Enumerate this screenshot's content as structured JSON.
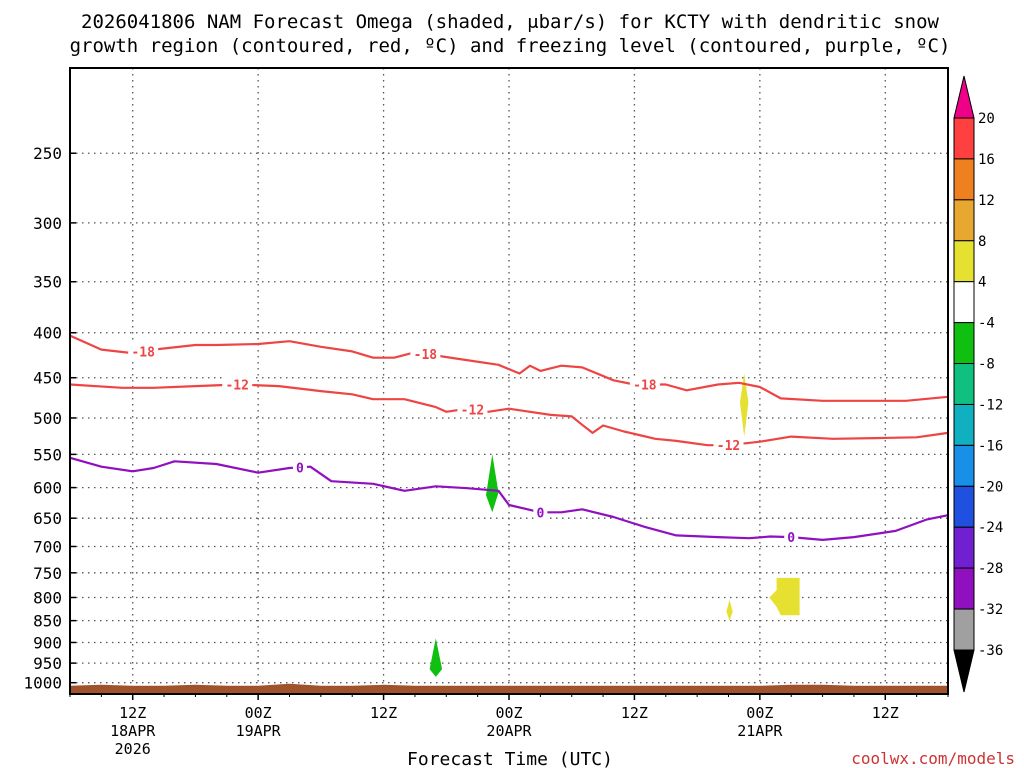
{
  "chart_data": {
    "type": "contour",
    "title_line1": "2026041806 NAM Forecast Omega (shaded, μbar/s) for KCTY with dendritic snow",
    "title_line2": "growth region (contoured, red, ºC) and freezing level (contoured, purple, ºC)",
    "xlabel": "Forecast Time (UTC)",
    "credit": "coolwx.com/models",
    "x_range_hours": [
      0,
      84
    ],
    "y_axis": {
      "scale": "log-pressure",
      "range_mb": [
        200,
        1030
      ],
      "ticks": [
        "250",
        "300",
        "350",
        "400",
        "450",
        "500",
        "550",
        "600",
        "650",
        "700",
        "750",
        "800",
        "850",
        "900",
        "950",
        "1000"
      ]
    },
    "x_ticks": [
      {
        "hour": 6,
        "label": "12Z",
        "sub1": "18APR",
        "sub2": "2026"
      },
      {
        "hour": 18,
        "label": "00Z",
        "sub1": "19APR",
        "sub2": ""
      },
      {
        "hour": 30,
        "label": "12Z",
        "sub1": "",
        "sub2": ""
      },
      {
        "hour": 42,
        "label": "00Z",
        "sub1": "20APR",
        "sub2": ""
      },
      {
        "hour": 54,
        "label": "12Z",
        "sub1": "",
        "sub2": ""
      },
      {
        "hour": 66,
        "label": "00Z",
        "sub1": "21APR",
        "sub2": ""
      },
      {
        "hour": 78,
        "label": "12Z",
        "sub1": "",
        "sub2": ""
      }
    ],
    "colorbar": {
      "labels": [
        "20",
        "16",
        "12",
        "8",
        "4",
        "-4",
        "-8",
        "-12",
        "-16",
        "-20",
        "-24",
        "-28",
        "-32",
        "-36"
      ],
      "colors": [
        "#ff4040",
        "#ee8020",
        "#e8a830",
        "#e6e030",
        "#ffffff",
        "#10c010",
        "#10c080",
        "#10b0c0",
        "#1890e8",
        "#2050e0",
        "#7020d0",
        "#9010c0",
        "#a0a0a0"
      ],
      "top_arrow": "#ee0088",
      "bottom_arrow": "#000000"
    },
    "contours": [
      {
        "name": "minus18",
        "label": "-18",
        "color": "#ee4444",
        "points": [
          [
            0,
            403
          ],
          [
            3,
            418
          ],
          [
            6,
            422
          ],
          [
            8,
            418
          ],
          [
            12,
            413
          ],
          [
            14,
            413
          ],
          [
            18,
            412
          ],
          [
            21,
            409
          ],
          [
            24,
            415
          ],
          [
            27,
            420
          ],
          [
            29,
            427
          ],
          [
            31,
            427
          ],
          [
            33,
            421
          ],
          [
            37,
            428
          ],
          [
            41,
            435
          ],
          [
            43,
            445
          ],
          [
            44,
            436
          ],
          [
            45,
            442
          ],
          [
            47,
            436
          ],
          [
            49,
            438
          ],
          [
            52,
            453
          ],
          [
            54,
            458
          ],
          [
            57,
            458
          ],
          [
            59,
            465
          ],
          [
            62,
            458
          ],
          [
            64,
            456
          ],
          [
            66,
            461
          ],
          [
            68,
            475
          ],
          [
            72,
            478
          ],
          [
            76,
            478
          ],
          [
            80,
            478
          ],
          [
            84,
            473
          ]
        ],
        "label_hours": [
          7,
          34,
          55
        ]
      },
      {
        "name": "minus12",
        "label": "-12",
        "color": "#ee4444",
        "points": [
          [
            0,
            458
          ],
          [
            5,
            462
          ],
          [
            8,
            462
          ],
          [
            12,
            460
          ],
          [
            16,
            458
          ],
          [
            20,
            460
          ],
          [
            24,
            466
          ],
          [
            27,
            470
          ],
          [
            29,
            476
          ],
          [
            32,
            476
          ],
          [
            35,
            486
          ],
          [
            36,
            492
          ],
          [
            38,
            488
          ],
          [
            40,
            492
          ],
          [
            42,
            488
          ],
          [
            44,
            492
          ],
          [
            46,
            496
          ],
          [
            48,
            498
          ],
          [
            49,
            509
          ],
          [
            50,
            520
          ],
          [
            51,
            510
          ],
          [
            53,
            518
          ],
          [
            56,
            528
          ],
          [
            58,
            531
          ],
          [
            61,
            537
          ],
          [
            63,
            537
          ],
          [
            66,
            532
          ],
          [
            69,
            525
          ],
          [
            73,
            528
          ],
          [
            77,
            527
          ],
          [
            81,
            526
          ],
          [
            84,
            520
          ]
        ],
        "label_hours": [
          16,
          38.5,
          63
        ]
      },
      {
        "name": "zero",
        "label": "0",
        "color": "#9010c0",
        "points": [
          [
            0,
            555
          ],
          [
            3,
            568
          ],
          [
            6,
            575
          ],
          [
            8,
            570
          ],
          [
            10,
            560
          ],
          [
            14,
            564
          ],
          [
            18,
            577
          ],
          [
            21,
            570
          ],
          [
            23,
            568
          ],
          [
            25,
            590
          ],
          [
            29,
            594
          ],
          [
            32,
            605
          ],
          [
            35,
            598
          ],
          [
            38,
            601
          ],
          [
            41,
            605
          ],
          [
            42,
            628
          ],
          [
            45,
            640
          ],
          [
            47,
            640
          ],
          [
            49,
            635
          ],
          [
            52,
            648
          ],
          [
            55,
            665
          ],
          [
            58,
            680
          ],
          [
            62,
            683
          ],
          [
            65,
            685
          ],
          [
            67,
            682
          ],
          [
            69,
            683
          ],
          [
            72,
            688
          ],
          [
            75,
            683
          ],
          [
            79,
            672
          ],
          [
            82,
            652
          ],
          [
            84,
            645
          ]
        ],
        "label_hours": [
          22,
          45,
          69
        ]
      }
    ],
    "shaded_areas": [
      {
        "name": "green-blob-mid",
        "value_range": "-4 to -8",
        "color": "#10c010",
        "points": [
          [
            40.4,
            550
          ],
          [
            41.0,
            608
          ],
          [
            40.4,
            640
          ],
          [
            39.8,
            612
          ]
        ]
      },
      {
        "name": "green-blob-low",
        "value_range": "-4 to -8",
        "color": "#10c010",
        "points": [
          [
            35.0,
            890
          ],
          [
            35.6,
            965
          ],
          [
            35.0,
            985
          ],
          [
            34.4,
            965
          ]
        ]
      },
      {
        "name": "yellow-blob-upper",
        "value_range": "4 to 8",
        "color": "#e6e030",
        "points": [
          [
            64.5,
            445
          ],
          [
            64.9,
            480
          ],
          [
            64.5,
            525
          ],
          [
            64.1,
            480
          ]
        ]
      },
      {
        "name": "yellow-blob-small",
        "value_range": "4 to 8",
        "color": "#e6e030",
        "points": [
          [
            63.1,
            805
          ],
          [
            63.4,
            830
          ],
          [
            63.1,
            850
          ],
          [
            62.8,
            830
          ]
        ]
      },
      {
        "name": "yellow-blob-right",
        "value_range": "4 to 8",
        "color": "#e6e030",
        "points": [
          [
            67.6,
            760
          ],
          [
            69.8,
            760
          ],
          [
            69.8,
            838
          ],
          [
            68.0,
            838
          ],
          [
            67.6,
            820
          ],
          [
            66.9,
            800
          ],
          [
            67.6,
            785
          ]
        ]
      }
    ],
    "terrain": {
      "name": "ground",
      "color": "#a0522d",
      "top_mb": 1008
    }
  }
}
